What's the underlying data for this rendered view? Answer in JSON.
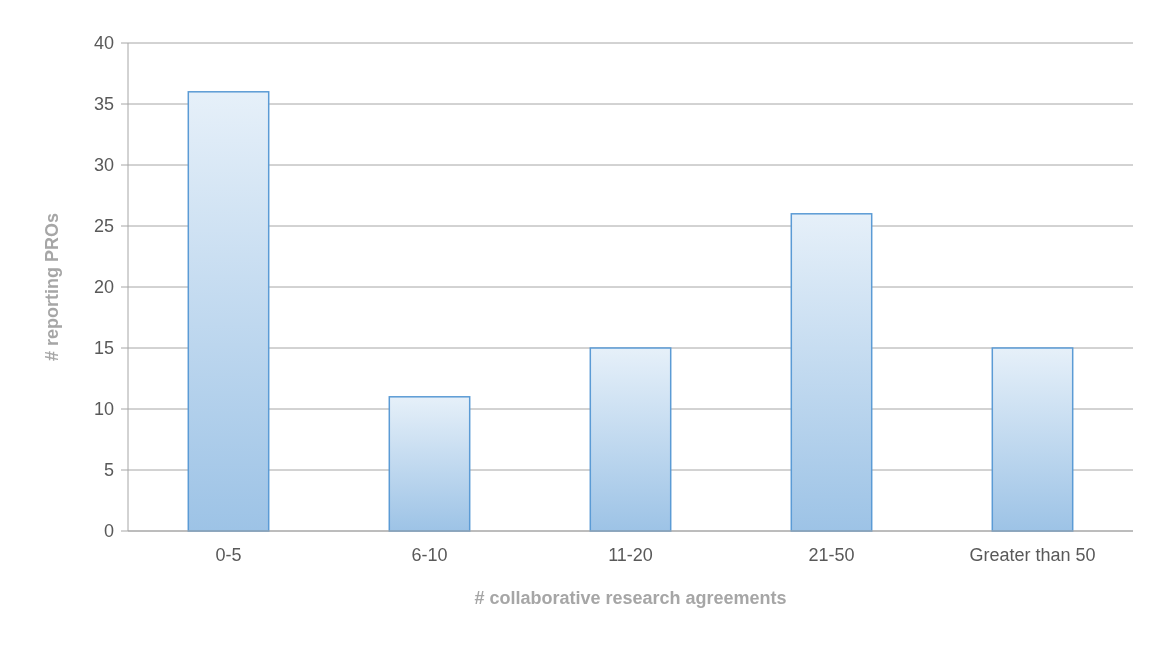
{
  "chart_data": {
    "type": "bar",
    "xlabel": "# collaborative research agreements",
    "ylabel": "# reporting PROs",
    "categories": [
      "0-5",
      "6-10",
      "11-20",
      "21-50",
      "Greater than 50"
    ],
    "values": [
      36,
      11,
      15,
      26,
      15
    ],
    "color": "#5b9bd5",
    "ylim": [
      0,
      40
    ],
    "yticks": [
      0,
      5,
      10,
      15,
      20,
      25,
      30,
      35,
      40
    ],
    "grid": "y"
  }
}
